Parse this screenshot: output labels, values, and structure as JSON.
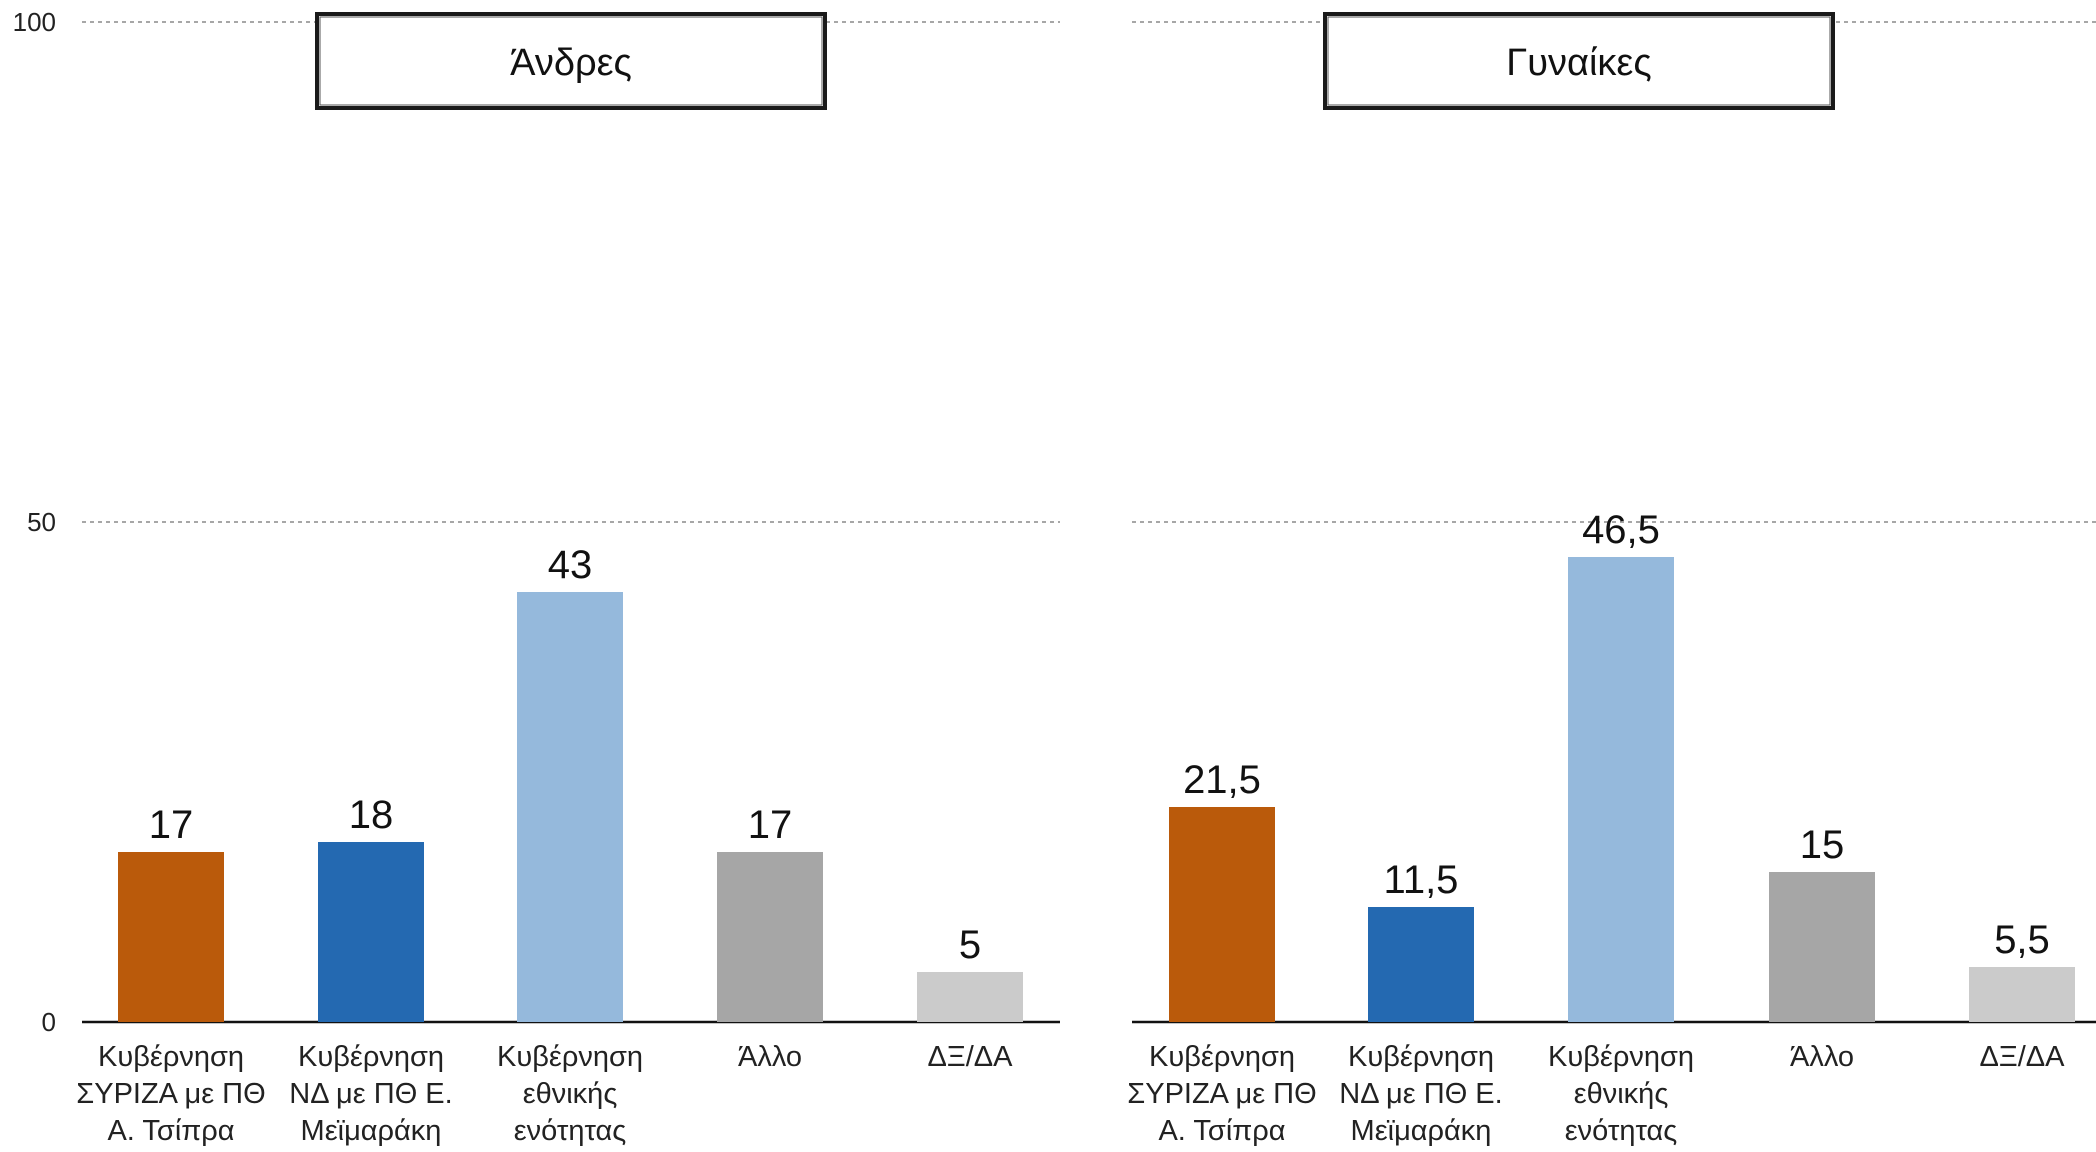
{
  "chart_data": {
    "type": "bar",
    "ylim": [
      0,
      100
    ],
    "yticks": [
      0,
      50,
      100
    ],
    "grid": true,
    "categories": [
      "Κυβέρνηση ΣΥΡΙΖΑ με ΠΘ Α. Τσίπρα",
      "Κυβέρνηση ΝΔ με ΠΘ Ε. Μεϊμαράκη",
      "Κυβέρνηση εθνικής ενότητας",
      "Άλλο",
      "ΔΞ/ΔΑ"
    ],
    "category_lines": [
      [
        "Κυβέρνηση",
        "ΣΥΡΙΖΑ με ΠΘ",
        "Α. Τσίπρα"
      ],
      [
        "Κυβέρνηση",
        "ΝΔ με ΠΘ Ε.",
        "Μεϊμαράκη"
      ],
      [
        "Κυβέρνηση",
        "εθνικής",
        "ενότητας"
      ],
      [
        "Άλλο"
      ],
      [
        "ΔΞ/ΔΑ"
      ]
    ],
    "colors": [
      "#BA5A0B",
      "#2469B1",
      "#95B9DC",
      "#A6A6A6",
      "#CBCBCB"
    ],
    "panels": [
      {
        "title": "Άνδρες",
        "values": [
          17,
          18,
          43,
          17,
          5
        ],
        "labels": [
          "17",
          "18",
          "43",
          "17",
          "5"
        ]
      },
      {
        "title": "Γυναίκες",
        "values": [
          21.5,
          11.5,
          46.5,
          15,
          5.5
        ],
        "labels": [
          "21,5",
          "11,5",
          "46,5",
          "15",
          "5,5"
        ]
      }
    ]
  }
}
